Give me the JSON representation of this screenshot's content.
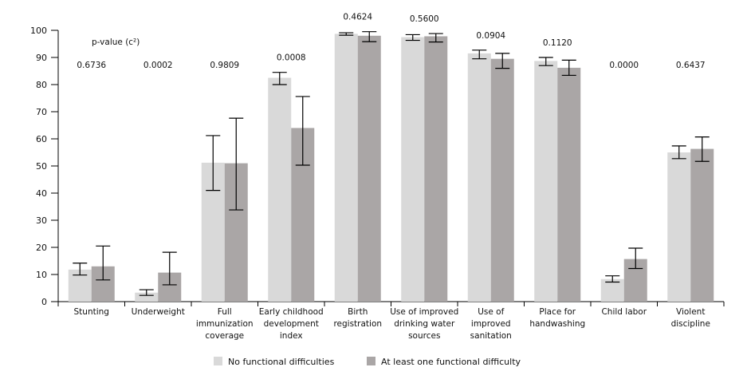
{
  "chart_data": {
    "type": "bar",
    "title": "",
    "xlabel": "",
    "ylabel": "",
    "ylim": [
      0,
      100
    ],
    "yticks": [
      0,
      10,
      20,
      30,
      40,
      50,
      60,
      70,
      80,
      90,
      100
    ],
    "grid": false,
    "annotation_header": "p-value (c²)",
    "categories": [
      [
        "Stunting"
      ],
      [
        "Underweight"
      ],
      [
        "Full",
        "immunization",
        "coverage"
      ],
      [
        "Early childhood",
        "development",
        "index"
      ],
      [
        "Birth",
        "registration"
      ],
      [
        "Use of improved",
        "drinking water",
        "sources"
      ],
      [
        "Use of",
        "improved",
        "sanitation"
      ],
      [
        "Place for",
        "handwashing"
      ],
      [
        "Child labor"
      ],
      [
        "Violent",
        "discipline"
      ]
    ],
    "p_values": [
      "0.6736",
      "0.0002",
      "0.9809",
      "0.0008",
      "0.4624",
      "0.5600",
      "0.0904",
      "0.1120",
      "0.0000",
      "0.6437"
    ],
    "series": [
      {
        "name": "No functional difficulties",
        "color": "#d9d9d9",
        "values": [
          11.8,
          3.3,
          51.2,
          82.5,
          98.7,
          97.5,
          91.5,
          88.7,
          8.3,
          55.0
        ],
        "ci_low": [
          9.8,
          2.3,
          41.0,
          80.0,
          98.2,
          96.3,
          89.5,
          87.0,
          7.2,
          52.7
        ],
        "ci_high": [
          14.2,
          4.4,
          61.2,
          84.5,
          99.1,
          98.4,
          92.7,
          90.0,
          9.5,
          57.4
        ]
      },
      {
        "name": "At least one functional difficulty",
        "color": "#aaa6a6",
        "values": [
          13.0,
          10.7,
          51.0,
          64.0,
          98.0,
          97.8,
          89.5,
          86.2,
          15.7,
          56.3
        ],
        "ci_low": [
          8.0,
          6.2,
          33.8,
          50.3,
          95.8,
          95.7,
          86.0,
          83.4,
          12.2,
          51.7
        ],
        "ci_high": [
          20.5,
          18.2,
          67.6,
          75.6,
          99.5,
          98.8,
          91.5,
          89.0,
          19.7,
          60.7
        ]
      }
    ],
    "legend_position": "bottom"
  }
}
